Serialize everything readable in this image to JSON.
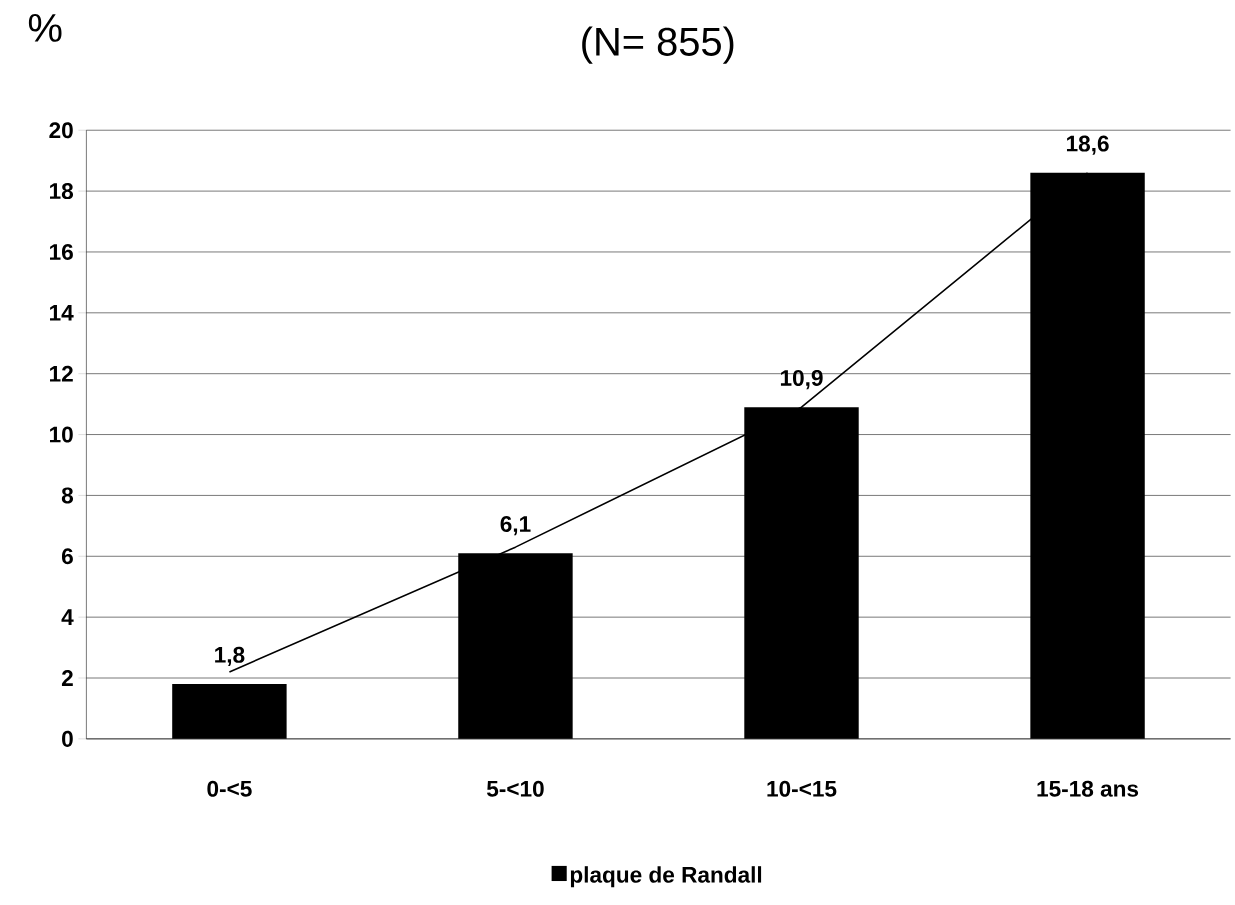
{
  "chart_data": {
    "type": "bar",
    "title": "(N= 855)",
    "ylabel": "%",
    "categories": [
      "0-<5",
      "5-<10",
      "10-<15",
      "15-18 ans"
    ],
    "series": [
      {
        "type": "line",
        "color": "#000000",
        "values": [
          2.2,
          6.3,
          10.9,
          18.6
        ]
      },
      {
        "name": "plaque de Randall",
        "color": "#000000",
        "values": [
          1.8,
          6.1,
          10.9,
          18.6
        ],
        "value_labels": [
          "1,8",
          "6,1",
          "10,9",
          "18,6"
        ]
      }
    ],
    "ylim": [
      0,
      20
    ],
    "yticks": [
      0,
      2,
      4,
      6,
      8,
      10,
      12,
      14,
      16,
      18,
      20
    ],
    "grid": "y",
    "legend": "bottom"
  }
}
